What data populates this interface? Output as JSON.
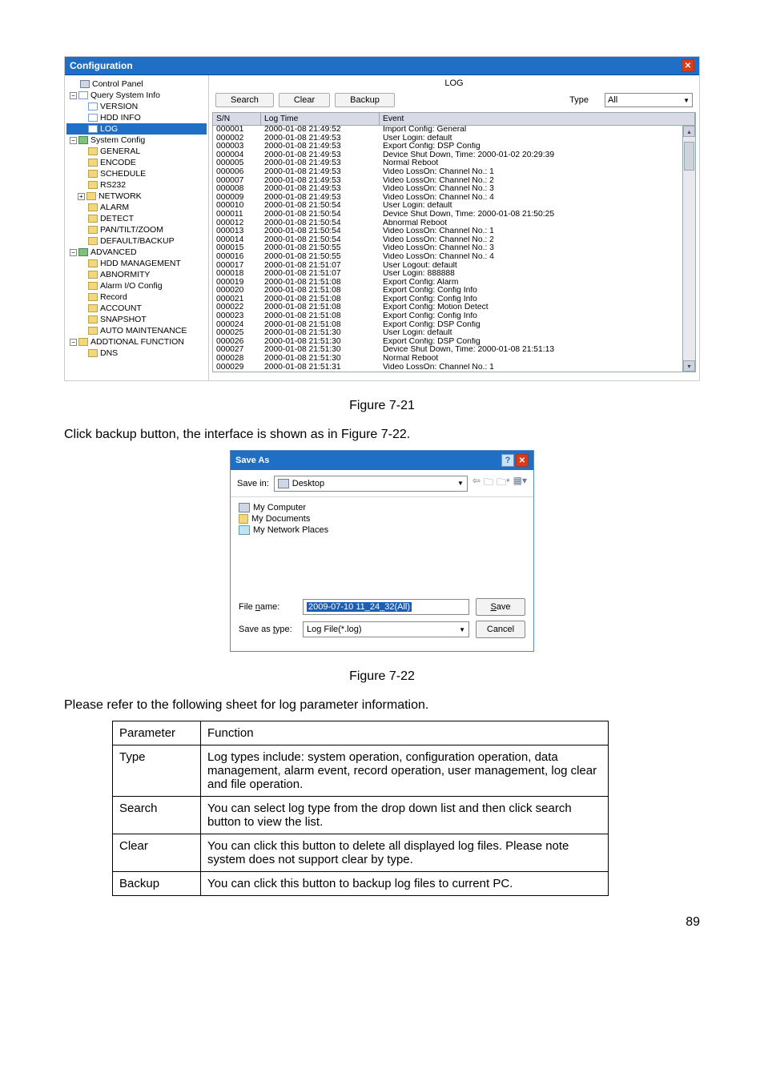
{
  "config_window": {
    "title": "Configuration",
    "panel_title": "LOG",
    "buttons": {
      "search": "Search",
      "clear": "Clear",
      "backup": "Backup"
    },
    "type_label": "Type",
    "type_value": "All",
    "tree": [
      {
        "label": "Control Panel",
        "indent": 0,
        "icon": "monitor",
        "expander": ""
      },
      {
        "label": "Query System Info",
        "indent": 0,
        "icon": "page",
        "expander": "−"
      },
      {
        "label": "VERSION",
        "indent": 1,
        "icon": "page",
        "expander": ""
      },
      {
        "label": "HDD INFO",
        "indent": 1,
        "icon": "page",
        "expander": ""
      },
      {
        "label": "LOG",
        "indent": 1,
        "icon": "page",
        "expander": "",
        "selected": true
      },
      {
        "label": "System Config",
        "indent": 0,
        "icon": "gear",
        "expander": "−"
      },
      {
        "label": "GENERAL",
        "indent": 1,
        "icon": "folder",
        "expander": ""
      },
      {
        "label": "ENCODE",
        "indent": 1,
        "icon": "folder",
        "expander": ""
      },
      {
        "label": "SCHEDULE",
        "indent": 1,
        "icon": "folder",
        "expander": ""
      },
      {
        "label": "RS232",
        "indent": 1,
        "icon": "folder",
        "expander": ""
      },
      {
        "label": "NETWORK",
        "indent": 1,
        "icon": "folder",
        "expander": "+"
      },
      {
        "label": "ALARM",
        "indent": 1,
        "icon": "folder",
        "expander": ""
      },
      {
        "label": "DETECT",
        "indent": 1,
        "icon": "folder",
        "expander": ""
      },
      {
        "label": "PAN/TILT/ZOOM",
        "indent": 1,
        "icon": "folder",
        "expander": ""
      },
      {
        "label": "DEFAULT/BACKUP",
        "indent": 1,
        "icon": "folder",
        "expander": ""
      },
      {
        "label": "ADVANCED",
        "indent": 0,
        "icon": "gear",
        "expander": "−"
      },
      {
        "label": "HDD MANAGEMENT",
        "indent": 1,
        "icon": "folder",
        "expander": ""
      },
      {
        "label": "ABNORMITY",
        "indent": 1,
        "icon": "folder",
        "expander": ""
      },
      {
        "label": "Alarm I/O Config",
        "indent": 1,
        "icon": "folder",
        "expander": ""
      },
      {
        "label": "Record",
        "indent": 1,
        "icon": "folder",
        "expander": ""
      },
      {
        "label": "ACCOUNT",
        "indent": 1,
        "icon": "folder",
        "expander": ""
      },
      {
        "label": "SNAPSHOT",
        "indent": 1,
        "icon": "folder",
        "expander": ""
      },
      {
        "label": "AUTO MAINTENANCE",
        "indent": 1,
        "icon": "folder",
        "expander": ""
      },
      {
        "label": "ADDTIONAL FUNCTION",
        "indent": 0,
        "icon": "folder-open",
        "expander": "−"
      },
      {
        "label": "DNS",
        "indent": 1,
        "icon": "folder",
        "expander": ""
      }
    ],
    "columns": {
      "sn": "S/N",
      "time": "Log Time",
      "event": "Event"
    },
    "logs": [
      {
        "sn": "000001",
        "time": "2000-01-08 21:49:52",
        "event": "Import Config: General"
      },
      {
        "sn": "000002",
        "time": "2000-01-08 21:49:53",
        "event": "User Login: default"
      },
      {
        "sn": "000003",
        "time": "2000-01-08 21:49:53",
        "event": "Export Config: DSP Config"
      },
      {
        "sn": "000004",
        "time": "2000-01-08 21:49:53",
        "event": "Device Shut Down, Time: 2000-01-02 20:29:39"
      },
      {
        "sn": "000005",
        "time": "2000-01-08 21:49:53",
        "event": "Normal Reboot"
      },
      {
        "sn": "000006",
        "time": "2000-01-08 21:49:53",
        "event": "Video LossOn: Channel No.: 1"
      },
      {
        "sn": "000007",
        "time": "2000-01-08 21:49:53",
        "event": "Video LossOn: Channel No.: 2"
      },
      {
        "sn": "000008",
        "time": "2000-01-08 21:49:53",
        "event": "Video LossOn: Channel No.: 3"
      },
      {
        "sn": "000009",
        "time": "2000-01-08 21:49:53",
        "event": "Video LossOn: Channel No.: 4"
      },
      {
        "sn": "000010",
        "time": "2000-01-08 21:50:54",
        "event": "User Login: default"
      },
      {
        "sn": "000011",
        "time": "2000-01-08 21:50:54",
        "event": "Device Shut Down, Time: 2000-01-08 21:50:25"
      },
      {
        "sn": "000012",
        "time": "2000-01-08 21:50:54",
        "event": "Abnormal Reboot"
      },
      {
        "sn": "000013",
        "time": "2000-01-08 21:50:54",
        "event": "Video LossOn: Channel No.: 1"
      },
      {
        "sn": "000014",
        "time": "2000-01-08 21:50:54",
        "event": "Video LossOn: Channel No.: 2"
      },
      {
        "sn": "000015",
        "time": "2000-01-08 21:50:55",
        "event": "Video LossOn: Channel No.: 3"
      },
      {
        "sn": "000016",
        "time": "2000-01-08 21:50:55",
        "event": "Video LossOn: Channel No.: 4"
      },
      {
        "sn": "000017",
        "time": "2000-01-08 21:51:07",
        "event": "User Logout: default"
      },
      {
        "sn": "000018",
        "time": "2000-01-08 21:51:07",
        "event": "User Login: 888888"
      },
      {
        "sn": "000019",
        "time": "2000-01-08 21:51:08",
        "event": "Export Config: Alarm"
      },
      {
        "sn": "000020",
        "time": "2000-01-08 21:51:08",
        "event": "Export Config: Config Info"
      },
      {
        "sn": "000021",
        "time": "2000-01-08 21:51:08",
        "event": "Export Config: Config Info"
      },
      {
        "sn": "000022",
        "time": "2000-01-08 21:51:08",
        "event": "Export Config: Motion Detect"
      },
      {
        "sn": "000023",
        "time": "2000-01-08 21:51:08",
        "event": "Export Config: Config Info"
      },
      {
        "sn": "000024",
        "time": "2000-01-08 21:51:08",
        "event": "Export Config: DSP Config"
      },
      {
        "sn": "000025",
        "time": "2000-01-08 21:51:30",
        "event": "User Login: default"
      },
      {
        "sn": "000026",
        "time": "2000-01-08 21:51:30",
        "event": "Export Config: DSP Config"
      },
      {
        "sn": "000027",
        "time": "2000-01-08 21:51:30",
        "event": "Device Shut Down, Time: 2000-01-08 21:51:13"
      },
      {
        "sn": "000028",
        "time": "2000-01-08 21:51:30",
        "event": "Normal Reboot"
      },
      {
        "sn": "000029",
        "time": "2000-01-08 21:51:31",
        "event": "Video LossOn: Channel No.: 1"
      }
    ]
  },
  "captions": {
    "fig21": "Figure 7-21",
    "fig22": "Figure 7-22"
  },
  "body": {
    "line1": "Click backup button, the interface is shown as in Figure 7-22.",
    "line2": "Please refer to the following sheet for log parameter information."
  },
  "saveas": {
    "title": "Save As",
    "save_in_label": "Save in:",
    "save_in_value": "Desktop",
    "items": [
      "My Computer",
      "My Documents",
      "My Network Places"
    ],
    "filename_label": "File name:",
    "filename_value": "2009-07-10 11_24_32(All)",
    "savetype_label": "Save as type:",
    "savetype_value": "Log File(*.log)",
    "save_btn": "Save",
    "cancel_btn": "Cancel"
  },
  "param_table": {
    "headers": [
      "Parameter",
      "Function"
    ],
    "rows": [
      [
        "Type",
        "Log types include: system operation, configuration operation, data management, alarm event, record operation, user management, log clear and file operation."
      ],
      [
        "Search",
        "You can select log type from the drop down list and then click search button to view the list."
      ],
      [
        "Clear",
        "You can click this button to delete all displayed log files.  Please note system does not support clear by type."
      ],
      [
        "Backup",
        "You can click this button to backup log files to current PC."
      ]
    ]
  },
  "page_number": "89"
}
